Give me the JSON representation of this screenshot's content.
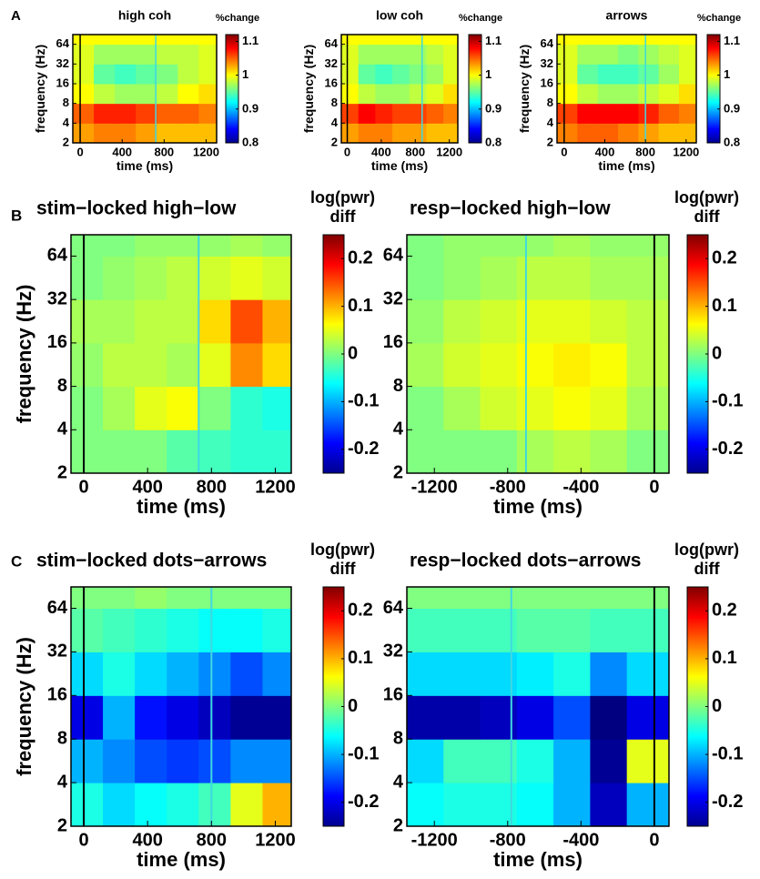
{
  "panel_labels": [
    "A",
    "B",
    "C"
  ],
  "chart_data": [
    {
      "type": "heatmap",
      "title": "high coh",
      "xlabel": "time (ms)",
      "ylabel": "frequency (Hz)",
      "colorbar_label": [
        "%change"
      ],
      "colormap": "jet",
      "clim": [
        0.8,
        1.12
      ],
      "cticks": [
        0.8,
        0.9,
        1,
        1.1
      ],
      "xlim": [
        -70,
        1300
      ],
      "xticks": [
        0,
        400,
        800,
        1200
      ],
      "ylim": [
        2,
        90
      ],
      "yticks": [
        2,
        4,
        8,
        16,
        32,
        64
      ],
      "log_y": true,
      "vlines": [
        {
          "x": 0,
          "color": "#000000"
        },
        {
          "x": 720,
          "color": "#40d8e0"
        }
      ],
      "xbins": [
        -70,
        130,
        330,
        530,
        730,
        930,
        1130,
        1300
      ],
      "ybins": [
        2,
        4,
        8,
        16,
        32,
        64,
        90
      ],
      "z": [
        [
          1.03,
          1.04,
          1.04,
          1.03,
          1.02,
          1.02,
          1.02
        ],
        [
          1.05,
          1.07,
          1.07,
          1.06,
          1.05,
          1.05,
          1.04
        ],
        [
          1.0,
          0.98,
          0.97,
          0.97,
          0.98,
          1.0,
          1.01
        ],
        [
          0.99,
          0.95,
          0.94,
          0.95,
          0.96,
          0.98,
          0.99
        ],
        [
          0.99,
          0.97,
          0.97,
          0.97,
          0.98,
          0.98,
          0.99
        ],
        [
          1.0,
          1.0,
          1.0,
          1.0,
          1.0,
          1.0,
          1.0
        ]
      ]
    },
    {
      "type": "heatmap",
      "title": "low coh",
      "xlabel": "time (ms)",
      "ylabel": "frequency (Hz)",
      "colorbar_label": [
        "%change"
      ],
      "colormap": "jet",
      "clim": [
        0.8,
        1.12
      ],
      "cticks": [
        0.8,
        0.9,
        1,
        1.1
      ],
      "xlim": [
        -70,
        1300
      ],
      "xticks": [
        0,
        400,
        800,
        1200
      ],
      "ylim": [
        2,
        90
      ],
      "yticks": [
        2,
        4,
        8,
        16,
        32,
        64
      ],
      "log_y": true,
      "vlines": [
        {
          "x": 0,
          "color": "#000000"
        },
        {
          "x": 880,
          "color": "#40d8e0"
        }
      ],
      "xbins": [
        -70,
        130,
        330,
        530,
        730,
        930,
        1130,
        1300
      ],
      "ybins": [
        2,
        4,
        8,
        16,
        32,
        64,
        90
      ],
      "z": [
        [
          1.03,
          1.04,
          1.04,
          1.03,
          1.03,
          1.02,
          1.02
        ],
        [
          1.06,
          1.08,
          1.07,
          1.06,
          1.06,
          1.05,
          1.04
        ],
        [
          1.0,
          0.98,
          0.97,
          0.97,
          0.98,
          0.99,
          1.01
        ],
        [
          0.99,
          0.95,
          0.94,
          0.95,
          0.96,
          0.97,
          0.99
        ],
        [
          0.99,
          0.97,
          0.97,
          0.97,
          0.97,
          0.98,
          0.99
        ],
        [
          1.0,
          1.0,
          1.0,
          1.0,
          1.0,
          1.0,
          1.0
        ]
      ]
    },
    {
      "type": "heatmap",
      "title": "arrows",
      "xlabel": "time (ms)",
      "ylabel": "frequency (Hz)",
      "colorbar_label": [
        "%change"
      ],
      "colormap": "jet",
      "clim": [
        0.8,
        1.12
      ],
      "cticks": [
        0.8,
        0.9,
        1,
        1.1
      ],
      "xlim": [
        -70,
        1300
      ],
      "xticks": [
        0,
        400,
        800,
        1200
      ],
      "ylim": [
        2,
        90
      ],
      "yticks": [
        2,
        4,
        8,
        16,
        32,
        64
      ],
      "log_y": true,
      "vlines": [
        {
          "x": 0,
          "color": "#000000"
        },
        {
          "x": 800,
          "color": "#40d8e0"
        }
      ],
      "xbins": [
        -70,
        130,
        330,
        530,
        730,
        930,
        1130,
        1300
      ],
      "ybins": [
        2,
        4,
        8,
        16,
        32,
        64,
        90
      ],
      "z": [
        [
          1.04,
          1.05,
          1.05,
          1.04,
          1.03,
          1.02,
          1.02
        ],
        [
          1.06,
          1.08,
          1.08,
          1.08,
          1.07,
          1.05,
          1.04
        ],
        [
          1.0,
          0.98,
          0.97,
          0.97,
          0.98,
          0.99,
          1.01
        ],
        [
          0.99,
          0.95,
          0.94,
          0.94,
          0.95,
          0.97,
          0.99
        ],
        [
          0.99,
          0.97,
          0.97,
          0.96,
          0.97,
          0.98,
          0.99
        ],
        [
          1.0,
          1.0,
          1.0,
          1.0,
          1.0,
          1.0,
          1.0
        ]
      ]
    },
    {
      "type": "heatmap",
      "title": "stim−locked high−low",
      "xlabel": "time (ms)",
      "ylabel": "frequency (Hz)",
      "colorbar_label": [
        "log(pwr)",
        "diff"
      ],
      "colormap": "jet",
      "clim": [
        -0.25,
        0.25
      ],
      "cticks": [
        -0.2,
        -0.1,
        0,
        0.1,
        0.2
      ],
      "xlim": [
        -80,
        1300
      ],
      "xticks": [
        0,
        400,
        800,
        1200
      ],
      "ylim": [
        2,
        90
      ],
      "yticks": [
        2,
        4,
        8,
        16,
        32,
        64
      ],
      "log_y": true,
      "vlines": [
        {
          "x": 0,
          "color": "#000000"
        },
        {
          "x": 720,
          "color": "#40d8e0"
        }
      ],
      "xbins": [
        -80,
        120,
        320,
        520,
        720,
        920,
        1120,
        1300
      ],
      "ybins": [
        2,
        4,
        8,
        16,
        32,
        64,
        90
      ],
      "z": [
        [
          0.0,
          0.0,
          0.0,
          -0.02,
          -0.03,
          -0.04,
          -0.04
        ],
        [
          0.0,
          0.02,
          0.05,
          0.06,
          0.0,
          -0.04,
          -0.05
        ],
        [
          0.01,
          0.03,
          0.03,
          0.02,
          0.05,
          0.12,
          0.08
        ],
        [
          0.02,
          0.02,
          0.03,
          0.03,
          0.08,
          0.15,
          0.1
        ],
        [
          0.0,
          0.01,
          0.02,
          0.03,
          0.04,
          0.05,
          0.04
        ],
        [
          0.0,
          0.0,
          0.01,
          0.01,
          0.01,
          0.02,
          0.01
        ]
      ]
    },
    {
      "type": "heatmap",
      "title": "resp−locked high−low",
      "xlabel": "time (ms)",
      "colorbar_label": [
        "log(pwr)",
        "diff"
      ],
      "colormap": "jet",
      "clim": [
        -0.25,
        0.25
      ],
      "cticks": [
        -0.2,
        -0.1,
        0,
        0.1,
        0.2
      ],
      "xlim": [
        -1350,
        80
      ],
      "xticks": [
        -1200,
        -800,
        -400,
        0
      ],
      "ylim": [
        2,
        90
      ],
      "yticks": [
        2,
        4,
        8,
        16,
        32,
        64
      ],
      "log_y": true,
      "vlines": [
        {
          "x": 0,
          "color": "#000000"
        },
        {
          "x": -700,
          "color": "#40d8e0"
        }
      ],
      "xbins": [
        -1350,
        -1150,
        -950,
        -750,
        -550,
        -350,
        -150,
        80
      ],
      "ybins": [
        2,
        4,
        8,
        16,
        32,
        64,
        90
      ],
      "z": [
        [
          0.0,
          0.0,
          0.0,
          0.02,
          0.03,
          0.02,
          0.0
        ],
        [
          0.0,
          0.02,
          0.04,
          0.05,
          0.06,
          0.05,
          0.02
        ],
        [
          0.02,
          0.04,
          0.05,
          0.06,
          0.07,
          0.06,
          0.03
        ],
        [
          0.01,
          0.03,
          0.04,
          0.05,
          0.05,
          0.04,
          0.03
        ],
        [
          0.0,
          0.01,
          0.02,
          0.03,
          0.03,
          0.02,
          0.02
        ],
        [
          0.0,
          0.01,
          0.01,
          0.01,
          0.02,
          0.01,
          0.01
        ]
      ]
    },
    {
      "type": "heatmap",
      "title": "stim−locked dots−arrows",
      "xlabel": "time (ms)",
      "ylabel": "frequency (Hz)",
      "colorbar_label": [
        "log(pwr)",
        "diff"
      ],
      "colormap": "jet",
      "clim": [
        -0.25,
        0.25
      ],
      "cticks": [
        -0.2,
        -0.1,
        0,
        0.1,
        0.2
      ],
      "xlim": [
        -80,
        1300
      ],
      "xticks": [
        0,
        400,
        800,
        1200
      ],
      "ylim": [
        2,
        90
      ],
      "yticks": [
        2,
        4,
        8,
        16,
        32,
        64
      ],
      "log_y": true,
      "vlines": [
        {
          "x": 0,
          "color": "#000000"
        },
        {
          "x": 800,
          "color": "#40d8e0"
        }
      ],
      "xbins": [
        -80,
        120,
        320,
        520,
        720,
        920,
        1120,
        1300
      ],
      "ybins": [
        2,
        4,
        8,
        16,
        32,
        64,
        90
      ],
      "z": [
        [
          -0.05,
          -0.08,
          -0.06,
          -0.05,
          -0.03,
          0.05,
          0.1
        ],
        [
          -0.1,
          -0.12,
          -0.15,
          -0.16,
          -0.15,
          -0.12,
          -0.12
        ],
        [
          -0.2,
          -0.1,
          -0.18,
          -0.2,
          -0.22,
          -0.24,
          -0.24
        ],
        [
          -0.08,
          -0.05,
          -0.08,
          -0.1,
          -0.12,
          -0.15,
          -0.12
        ],
        [
          -0.02,
          -0.03,
          -0.04,
          -0.05,
          -0.06,
          -0.06,
          -0.05
        ],
        [
          0.0,
          0.0,
          0.01,
          0.0,
          0.0,
          0.0,
          0.0
        ]
      ]
    },
    {
      "type": "heatmap",
      "title": "resp−locked dots−arrows",
      "xlabel": "time (ms)",
      "colorbar_label": [
        "log(pwr)",
        "diff"
      ],
      "colormap": "jet",
      "clim": [
        -0.25,
        0.25
      ],
      "cticks": [
        -0.2,
        -0.1,
        0,
        0.1,
        0.2
      ],
      "xlim": [
        -1350,
        80
      ],
      "xticks": [
        -1200,
        -800,
        -400,
        0
      ],
      "ylim": [
        2,
        90
      ],
      "yticks": [
        2,
        4,
        8,
        16,
        32,
        64
      ],
      "log_y": true,
      "vlines": [
        {
          "x": 0,
          "color": "#000000"
        },
        {
          "x": -780,
          "color": "#40d8e0"
        }
      ],
      "xbins": [
        -1350,
        -1150,
        -950,
        -750,
        -550,
        -350,
        -150,
        80
      ],
      "ybins": [
        2,
        4,
        8,
        16,
        32,
        64,
        90
      ],
      "z": [
        [
          -0.06,
          -0.05,
          -0.05,
          -0.06,
          -0.1,
          -0.22,
          -0.1
        ],
        [
          -0.08,
          -0.03,
          -0.03,
          -0.05,
          -0.1,
          -0.24,
          0.05
        ],
        [
          -0.23,
          -0.23,
          -0.22,
          -0.2,
          -0.15,
          -0.25,
          -0.2
        ],
        [
          -0.08,
          -0.08,
          -0.08,
          -0.07,
          -0.05,
          -0.12,
          -0.08
        ],
        [
          -0.03,
          -0.03,
          -0.03,
          -0.02,
          -0.02,
          -0.03,
          -0.03
        ],
        [
          0.0,
          0.0,
          0.0,
          0.0,
          0.0,
          0.0,
          0.0
        ]
      ]
    }
  ]
}
